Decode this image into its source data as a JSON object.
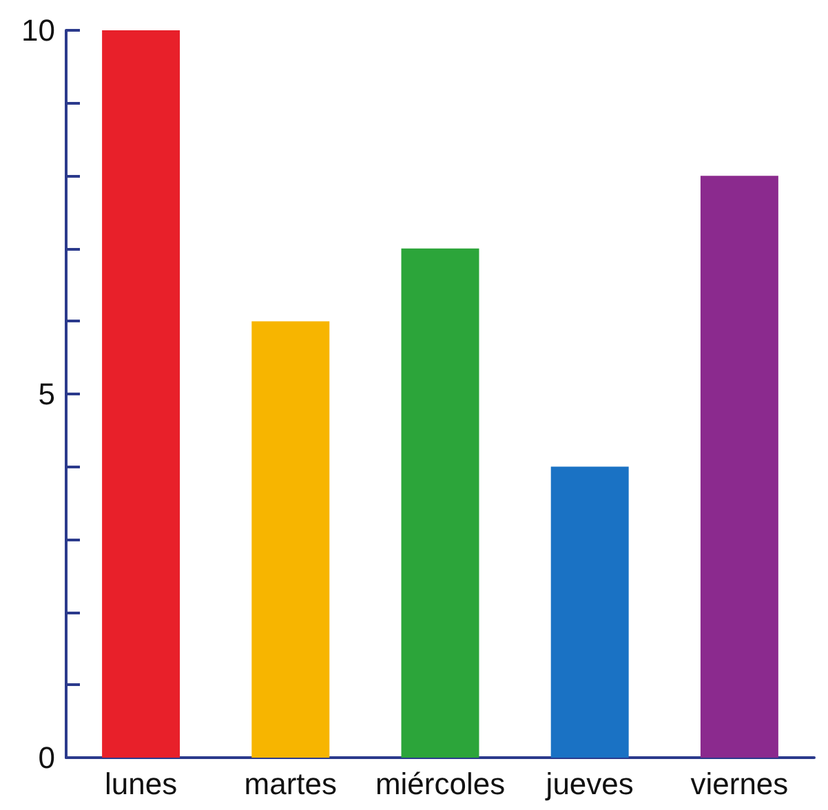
{
  "chart_data": {
    "type": "bar",
    "categories": [
      "lunes",
      "martes",
      "miércoles",
      "jueves",
      "viernes"
    ],
    "values": [
      10,
      6,
      7,
      4,
      8
    ],
    "colors": [
      "#e8202a",
      "#f7b500",
      "#2ca53a",
      "#1a72c4",
      "#8b2a8e"
    ],
    "ylim": [
      0,
      10
    ],
    "yticks": [
      0,
      {
        "value": 1,
        "label": null
      },
      {
        "value": 2,
        "label": null
      },
      {
        "value": 3,
        "label": null
      },
      {
        "value": 4,
        "label": null
      },
      5,
      {
        "value": 6,
        "label": null
      },
      {
        "value": 7,
        "label": null
      },
      {
        "value": 8,
        "label": null
      },
      {
        "value": 9,
        "label": null
      },
      10
    ],
    "grid": false
  }
}
